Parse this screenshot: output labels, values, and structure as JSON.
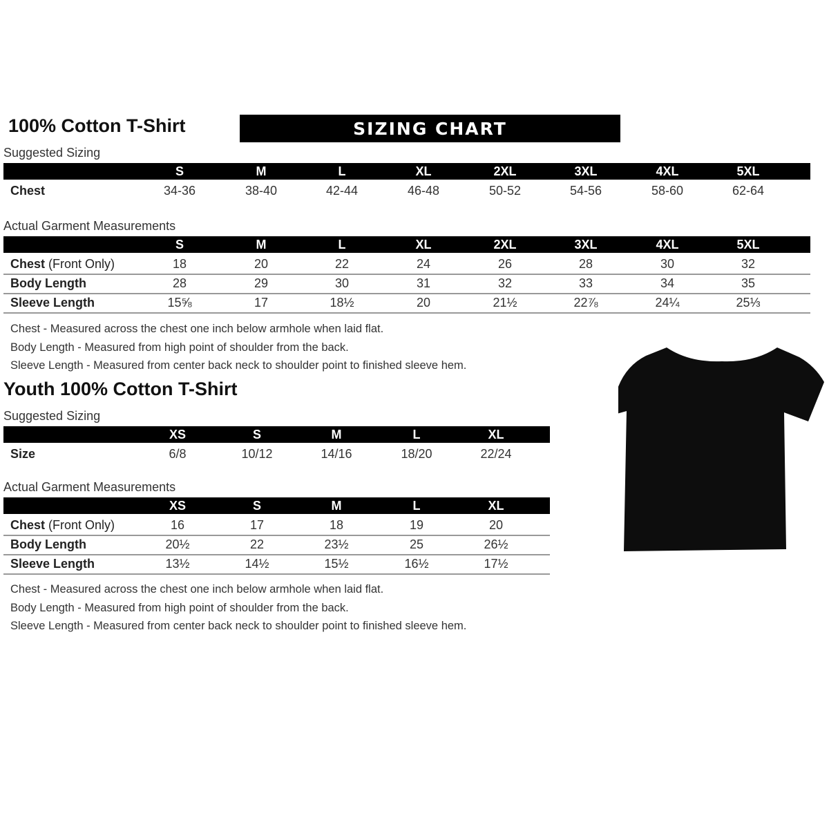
{
  "adult": {
    "title": "100% Cotton T-Shirt",
    "banner": "SIZING CHART",
    "suggested_label": "Suggested Sizing",
    "sizes": [
      "S",
      "M",
      "L",
      "XL",
      "2XL",
      "3XL",
      "4XL",
      "5XL"
    ],
    "suggested_rows": [
      {
        "label": "Chest",
        "values": [
          "34-36",
          "38-40",
          "42-44",
          "46-48",
          "50-52",
          "54-56",
          "58-60",
          "62-64"
        ]
      }
    ],
    "actual_label": "Actual Garment Measurements",
    "actual_rows": [
      {
        "label": "Chest",
        "label_suffix": " (Front Only)",
        "values": [
          "18",
          "20",
          "22",
          "24",
          "26",
          "28",
          "30",
          "32"
        ]
      },
      {
        "label": "Body Length",
        "label_suffix": "",
        "values": [
          "28",
          "29",
          "30",
          "31",
          "32",
          "33",
          "34",
          "35"
        ]
      },
      {
        "label": "Sleeve Length",
        "label_suffix": "",
        "values": [
          "15⅝",
          "17",
          "18½",
          "20",
          "21½",
          "22⅞",
          "24¼",
          "25⅓"
        ]
      }
    ],
    "notes": [
      "Chest - Measured across the chest one inch below armhole when laid flat.",
      "Body Length - Measured from high point of shoulder from the back.",
      "Sleeve Length - Measured from center back neck to shoulder point to finished sleeve hem."
    ]
  },
  "youth": {
    "title": "Youth 100% Cotton T-Shirt",
    "suggested_label": "Suggested Sizing",
    "sizes": [
      "XS",
      "S",
      "M",
      "L",
      "XL"
    ],
    "suggested_rows": [
      {
        "label": "Size",
        "values": [
          "6/8",
          "10/12",
          "14/16",
          "18/20",
          "22/24"
        ]
      }
    ],
    "actual_label": "Actual Garment Measurements",
    "actual_rows": [
      {
        "label": "Chest",
        "label_suffix": " (Front Only)",
        "values": [
          "16",
          "17",
          "18",
          "19",
          "20"
        ]
      },
      {
        "label": "Body Length",
        "label_suffix": "",
        "values": [
          "20½",
          "22",
          "23½",
          "25",
          "26½"
        ]
      },
      {
        "label": "Sleeve Length",
        "label_suffix": "",
        "values": [
          "13½",
          "14½",
          "15½",
          "16½",
          "17½"
        ]
      }
    ],
    "notes": [
      "Chest - Measured across the chest one inch below armhole when laid flat.",
      "Body Length - Measured from high point of shoulder from the back.",
      "Sleeve Length - Measured from center back neck to shoulder point to finished sleeve hem."
    ]
  },
  "tshirt_color": "#0d0d0d"
}
